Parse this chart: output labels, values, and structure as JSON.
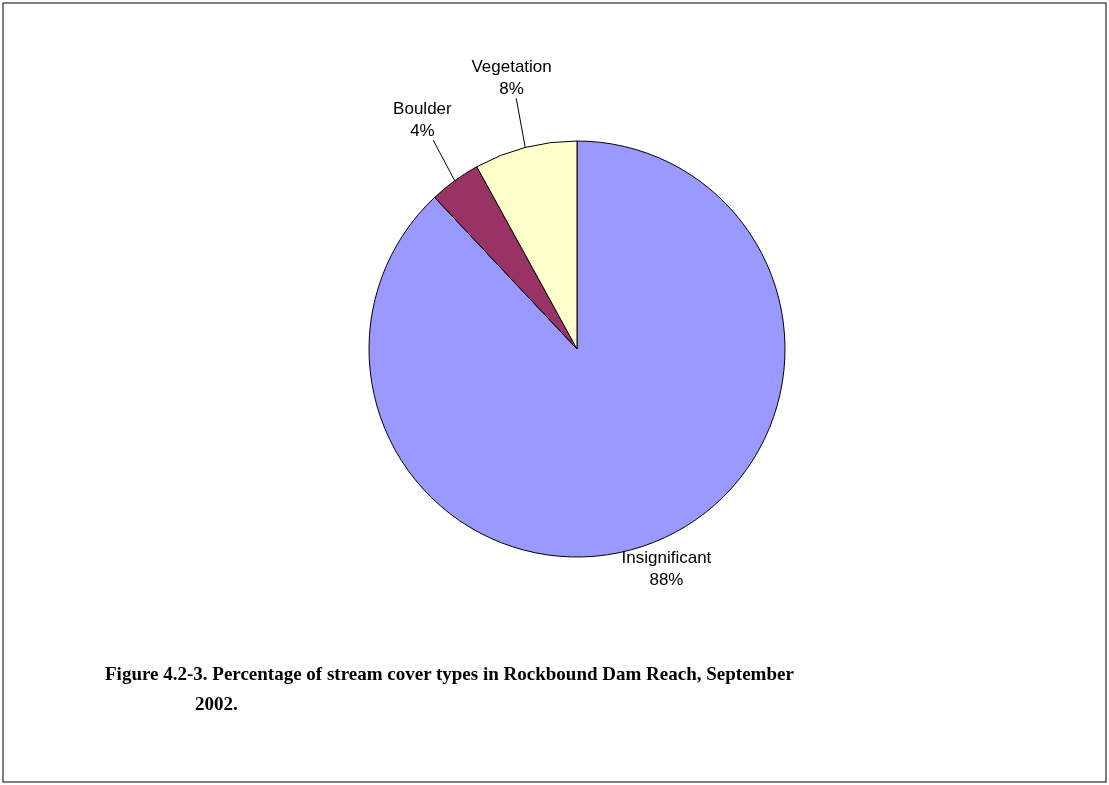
{
  "chart_data": {
    "type": "pie",
    "title": "Figure 4.2-3. Percentage of stream cover types in Rockbound Dam Reach, September 2002.",
    "categories": [
      "Insignificant",
      "Boulder",
      "Vegetation"
    ],
    "values": [
      88,
      4,
      8
    ],
    "value_labels": [
      "88%",
      "4%",
      "8%"
    ],
    "colors": [
      "#9999ff",
      "#993366",
      "#ffffcc"
    ]
  }
}
